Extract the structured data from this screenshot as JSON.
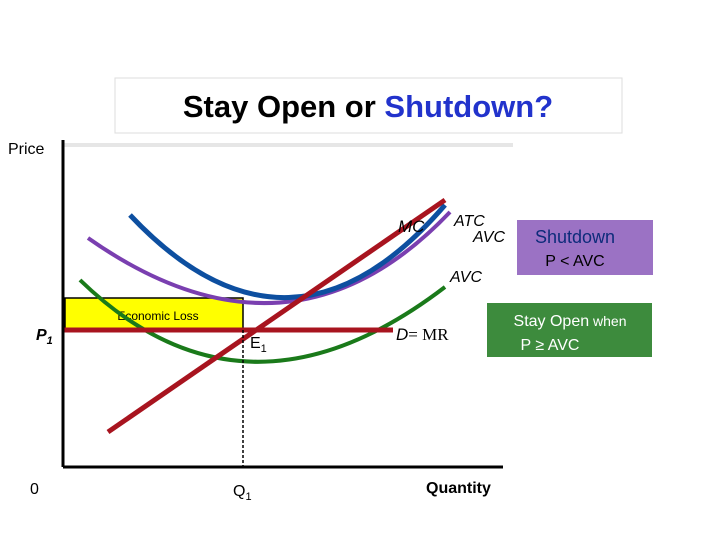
{
  "title": {
    "lead": "Stay Open or ",
    "highlight": "Shutdown?"
  },
  "axes": {
    "y_label": "Price",
    "x_label": "Quantity",
    "origin": "0",
    "price": {
      "main": "P",
      "sub": "1"
    },
    "quantity": {
      "main": "Q",
      "sub": "1"
    }
  },
  "curves": {
    "mc": "MC",
    "atc": "ATC",
    "avc_upper": "AVC",
    "avc_lower": "AVC",
    "demand": {
      "main": "D",
      "rest": "= MR"
    }
  },
  "equilibrium": {
    "main": "E",
    "sub": "1"
  },
  "loss_box": "Economic Loss",
  "shutdown_box": {
    "line1": "Shutdown",
    "line2": "P < AVC"
  },
  "stay_open_box": {
    "line1a": "Stay Open",
    "line1b": " when",
    "line2": "P ≥ AVC"
  }
}
